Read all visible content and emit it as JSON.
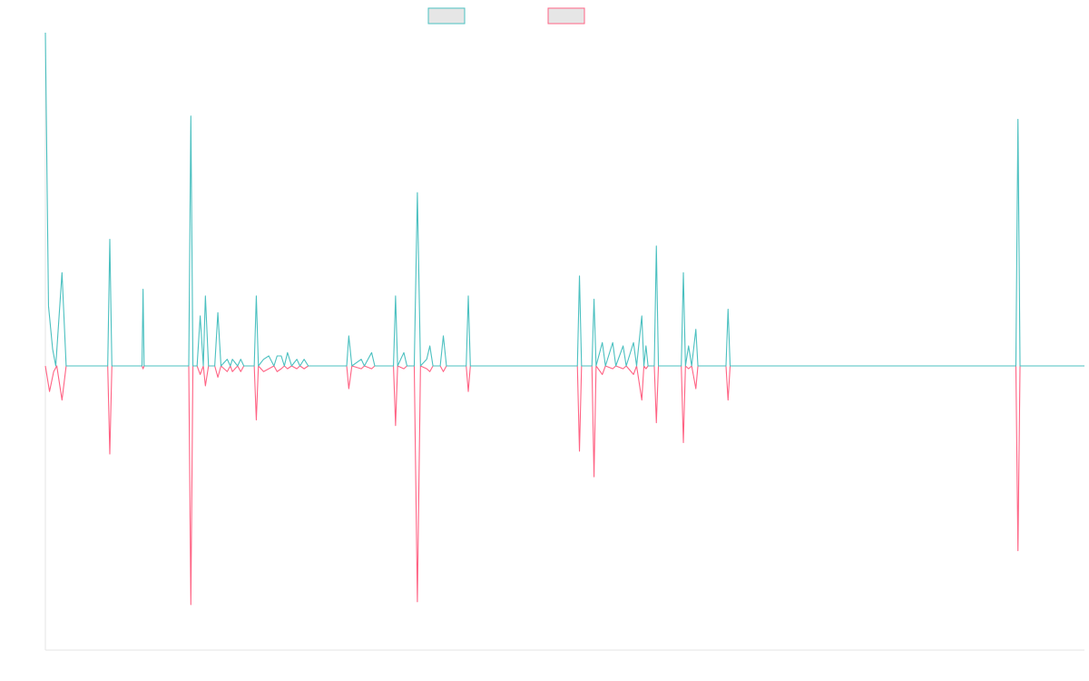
{
  "chart_data": {
    "type": "line",
    "title": "",
    "xlabel": "",
    "ylabel": "",
    "legend": {
      "position": "top-center",
      "show_labels": false
    },
    "grid": false,
    "x_range": [
      0,
      100
    ],
    "y_range": [
      -100,
      100
    ],
    "series": [
      {
        "color": "#4bc0c0",
        "points": [
          [
            0,
            100
          ],
          [
            0.3,
            18
          ],
          [
            0.7,
            5
          ],
          [
            1,
            0
          ],
          [
            1.6,
            28
          ],
          [
            2,
            0
          ],
          [
            2.5,
            0
          ],
          [
            6,
            0
          ],
          [
            6.2,
            38
          ],
          [
            6.4,
            0
          ],
          [
            9.3,
            0
          ],
          [
            9.4,
            23
          ],
          [
            9.5,
            0
          ],
          [
            13.8,
            0
          ],
          [
            14,
            75
          ],
          [
            14.2,
            0
          ],
          [
            14.6,
            0
          ],
          [
            14.9,
            15
          ],
          [
            15.2,
            0
          ],
          [
            15.4,
            21
          ],
          [
            15.7,
            0
          ],
          [
            16.3,
            0
          ],
          [
            16.6,
            16
          ],
          [
            16.9,
            0
          ],
          [
            17.5,
            2
          ],
          [
            17.8,
            0
          ],
          [
            18,
            2
          ],
          [
            18.5,
            0
          ],
          [
            18.8,
            2
          ],
          [
            19.1,
            0
          ],
          [
            20.1,
            0
          ],
          [
            20.3,
            21
          ],
          [
            20.5,
            0
          ],
          [
            21,
            2
          ],
          [
            21.5,
            3
          ],
          [
            22,
            0
          ],
          [
            22.3,
            3
          ],
          [
            22.7,
            3
          ],
          [
            23,
            0
          ],
          [
            23.3,
            4
          ],
          [
            23.7,
            0
          ],
          [
            24.2,
            2
          ],
          [
            24.5,
            0
          ],
          [
            24.9,
            2
          ],
          [
            25.3,
            0
          ],
          [
            29,
            0
          ],
          [
            29.2,
            9
          ],
          [
            29.5,
            0
          ],
          [
            30.4,
            2
          ],
          [
            30.7,
            0
          ],
          [
            31.4,
            4
          ],
          [
            31.7,
            0
          ],
          [
            33.5,
            0
          ],
          [
            33.7,
            21
          ],
          [
            33.9,
            0
          ],
          [
            34.5,
            4
          ],
          [
            34.8,
            0
          ],
          [
            35.5,
            0
          ],
          [
            35.8,
            52
          ],
          [
            36.1,
            0
          ],
          [
            36.7,
            2
          ],
          [
            37,
            6
          ],
          [
            37.3,
            0
          ],
          [
            38,
            0
          ],
          [
            38.3,
            9
          ],
          [
            38.6,
            0
          ],
          [
            40.5,
            0
          ],
          [
            40.7,
            21
          ],
          [
            40.9,
            0
          ],
          [
            51.2,
            0
          ],
          [
            51.4,
            27
          ],
          [
            51.6,
            0
          ],
          [
            52.6,
            0
          ],
          [
            52.8,
            20
          ],
          [
            53,
            0
          ],
          [
            53.6,
            7
          ],
          [
            53.9,
            0
          ],
          [
            54.6,
            7
          ],
          [
            54.9,
            0
          ],
          [
            55.6,
            6
          ],
          [
            55.9,
            0
          ],
          [
            56.6,
            7
          ],
          [
            56.9,
            0
          ],
          [
            57.4,
            15
          ],
          [
            57.6,
            0
          ],
          [
            57.8,
            6
          ],
          [
            58,
            0
          ],
          [
            58.6,
            0
          ],
          [
            58.8,
            36
          ],
          [
            59,
            0
          ],
          [
            61.2,
            0
          ],
          [
            61.4,
            28
          ],
          [
            61.6,
            0
          ],
          [
            61.9,
            6
          ],
          [
            62.2,
            0
          ],
          [
            62.6,
            11
          ],
          [
            62.8,
            0
          ],
          [
            65.5,
            0
          ],
          [
            65.7,
            17
          ],
          [
            65.9,
            0
          ],
          [
            93.4,
            0
          ],
          [
            93.6,
            74
          ],
          [
            93.8,
            0
          ],
          [
            100,
            0
          ]
        ]
      },
      {
        "color": "#ff6384",
        "points": [
          [
            0,
            0
          ],
          [
            0.4,
            -9
          ],
          [
            0.8,
            -2
          ],
          [
            1.1,
            0
          ],
          [
            1.6,
            -12
          ],
          [
            2,
            0
          ],
          [
            2.5,
            0
          ],
          [
            6,
            0
          ],
          [
            6.2,
            -31
          ],
          [
            6.4,
            0
          ],
          [
            9.3,
            0
          ],
          [
            9.4,
            -1
          ],
          [
            9.5,
            0
          ],
          [
            13.8,
            0
          ],
          [
            14,
            -84
          ],
          [
            14.2,
            0
          ],
          [
            14.6,
            0
          ],
          [
            14.9,
            -3
          ],
          [
            15.2,
            0
          ],
          [
            15.4,
            -7
          ],
          [
            15.7,
            0
          ],
          [
            16.3,
            0
          ],
          [
            16.6,
            -4
          ],
          [
            16.9,
            0
          ],
          [
            17.5,
            -2
          ],
          [
            17.8,
            0
          ],
          [
            18,
            -2
          ],
          [
            18.5,
            0
          ],
          [
            18.8,
            -2
          ],
          [
            19.1,
            0
          ],
          [
            20.1,
            0
          ],
          [
            20.3,
            -19
          ],
          [
            20.5,
            0
          ],
          [
            21,
            -2
          ],
          [
            21.5,
            -1
          ],
          [
            22,
            0
          ],
          [
            22.3,
            -2
          ],
          [
            22.7,
            -1
          ],
          [
            23,
            0
          ],
          [
            23.3,
            -1
          ],
          [
            23.7,
            0
          ],
          [
            24.2,
            -1
          ],
          [
            24.5,
            0
          ],
          [
            24.9,
            -1
          ],
          [
            25.3,
            0
          ],
          [
            29,
            0
          ],
          [
            29.2,
            -8
          ],
          [
            29.5,
            0
          ],
          [
            30.4,
            -1
          ],
          [
            30.7,
            0
          ],
          [
            31.4,
            -1
          ],
          [
            31.7,
            0
          ],
          [
            33.5,
            0
          ],
          [
            33.7,
            -21
          ],
          [
            33.9,
            0
          ],
          [
            34.5,
            -1
          ],
          [
            34.8,
            0
          ],
          [
            35.5,
            0
          ],
          [
            35.8,
            -83
          ],
          [
            36.1,
            0
          ],
          [
            36.7,
            -1
          ],
          [
            37,
            -2
          ],
          [
            37.3,
            0
          ],
          [
            38,
            0
          ],
          [
            38.3,
            -2
          ],
          [
            38.6,
            0
          ],
          [
            40.5,
            0
          ],
          [
            40.7,
            -9
          ],
          [
            40.9,
            0
          ],
          [
            51.2,
            0
          ],
          [
            51.4,
            -30
          ],
          [
            51.6,
            0
          ],
          [
            52.6,
            0
          ],
          [
            52.8,
            -39
          ],
          [
            53,
            0
          ],
          [
            53.6,
            -3
          ],
          [
            53.9,
            0
          ],
          [
            54.6,
            -1
          ],
          [
            54.9,
            0
          ],
          [
            55.6,
            -1
          ],
          [
            55.9,
            0
          ],
          [
            56.6,
            -3
          ],
          [
            56.9,
            0
          ],
          [
            57.4,
            -12
          ],
          [
            57.6,
            0
          ],
          [
            57.8,
            -1
          ],
          [
            58,
            0
          ],
          [
            58.6,
            0
          ],
          [
            58.8,
            -20
          ],
          [
            59,
            0
          ],
          [
            61.2,
            0
          ],
          [
            61.4,
            -27
          ],
          [
            61.6,
            0
          ],
          [
            61.9,
            -1
          ],
          [
            62.2,
            0
          ],
          [
            62.6,
            -8
          ],
          [
            62.8,
            0
          ],
          [
            65.5,
            0
          ],
          [
            65.7,
            -12
          ],
          [
            65.9,
            0
          ],
          [
            93.4,
            0
          ],
          [
            93.6,
            -65
          ],
          [
            93.8,
            0
          ],
          [
            100,
            0
          ]
        ]
      }
    ]
  }
}
